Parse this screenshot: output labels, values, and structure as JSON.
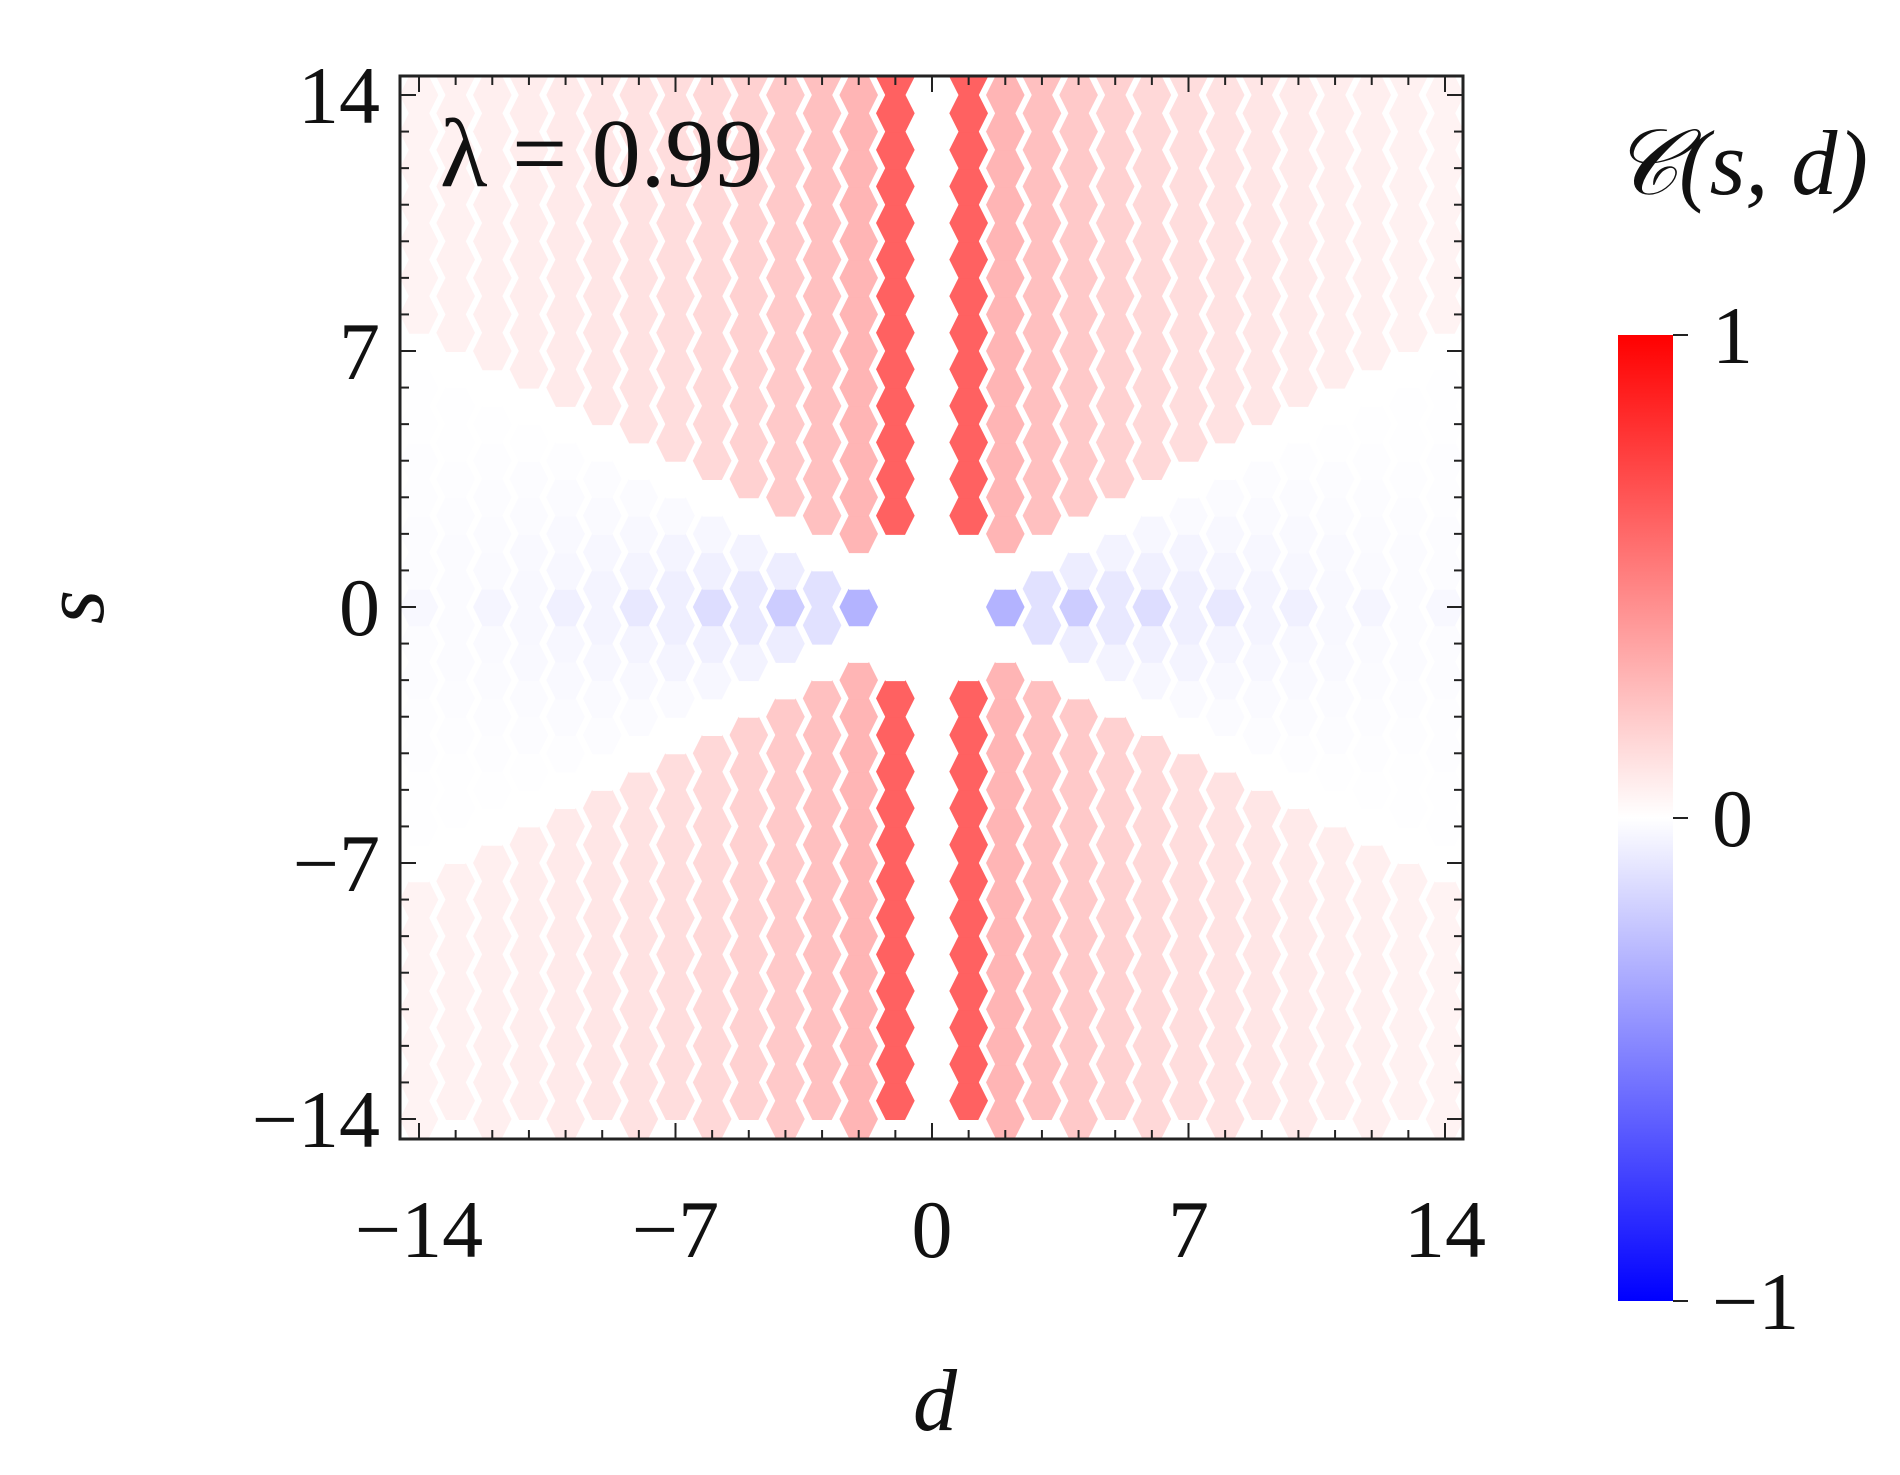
{
  "chart_data": {
    "type": "heatmap",
    "cell_shape": "hexagon",
    "xlabel": "d",
    "ylabel": "s",
    "xlim": [
      -14,
      14
    ],
    "ylim": [
      -14,
      14
    ],
    "xticks": [
      -14,
      -7,
      0,
      7,
      14
    ],
    "yticks": [
      -14,
      -7,
      0,
      7,
      14
    ],
    "xtick_labels": [
      "−14",
      "−7",
      "0",
      "7",
      "14"
    ],
    "ytick_labels": [
      "−14",
      "−7",
      "0",
      "7",
      "14"
    ],
    "annotation": "λ = 0.99",
    "annotation_placement": "top-left",
    "colorbar": {
      "title": "𝒞(s, d)",
      "range": [
        -1,
        1
      ],
      "ticks": [
        1,
        0,
        -1
      ],
      "tick_labels": [
        "1",
        "0",
        "−1"
      ],
      "placement": "right",
      "colors": {
        "max": "#ff0000",
        "mid": "#ffffff",
        "min": "#0000ff"
      }
    },
    "grid": false,
    "z_description_values": {
      "central_columns_abs_d_1": 0.62,
      "outer_columns_peak": 0.28,
      "center_horizontal_min": -0.3,
      "far_field": 0.05
    }
  }
}
